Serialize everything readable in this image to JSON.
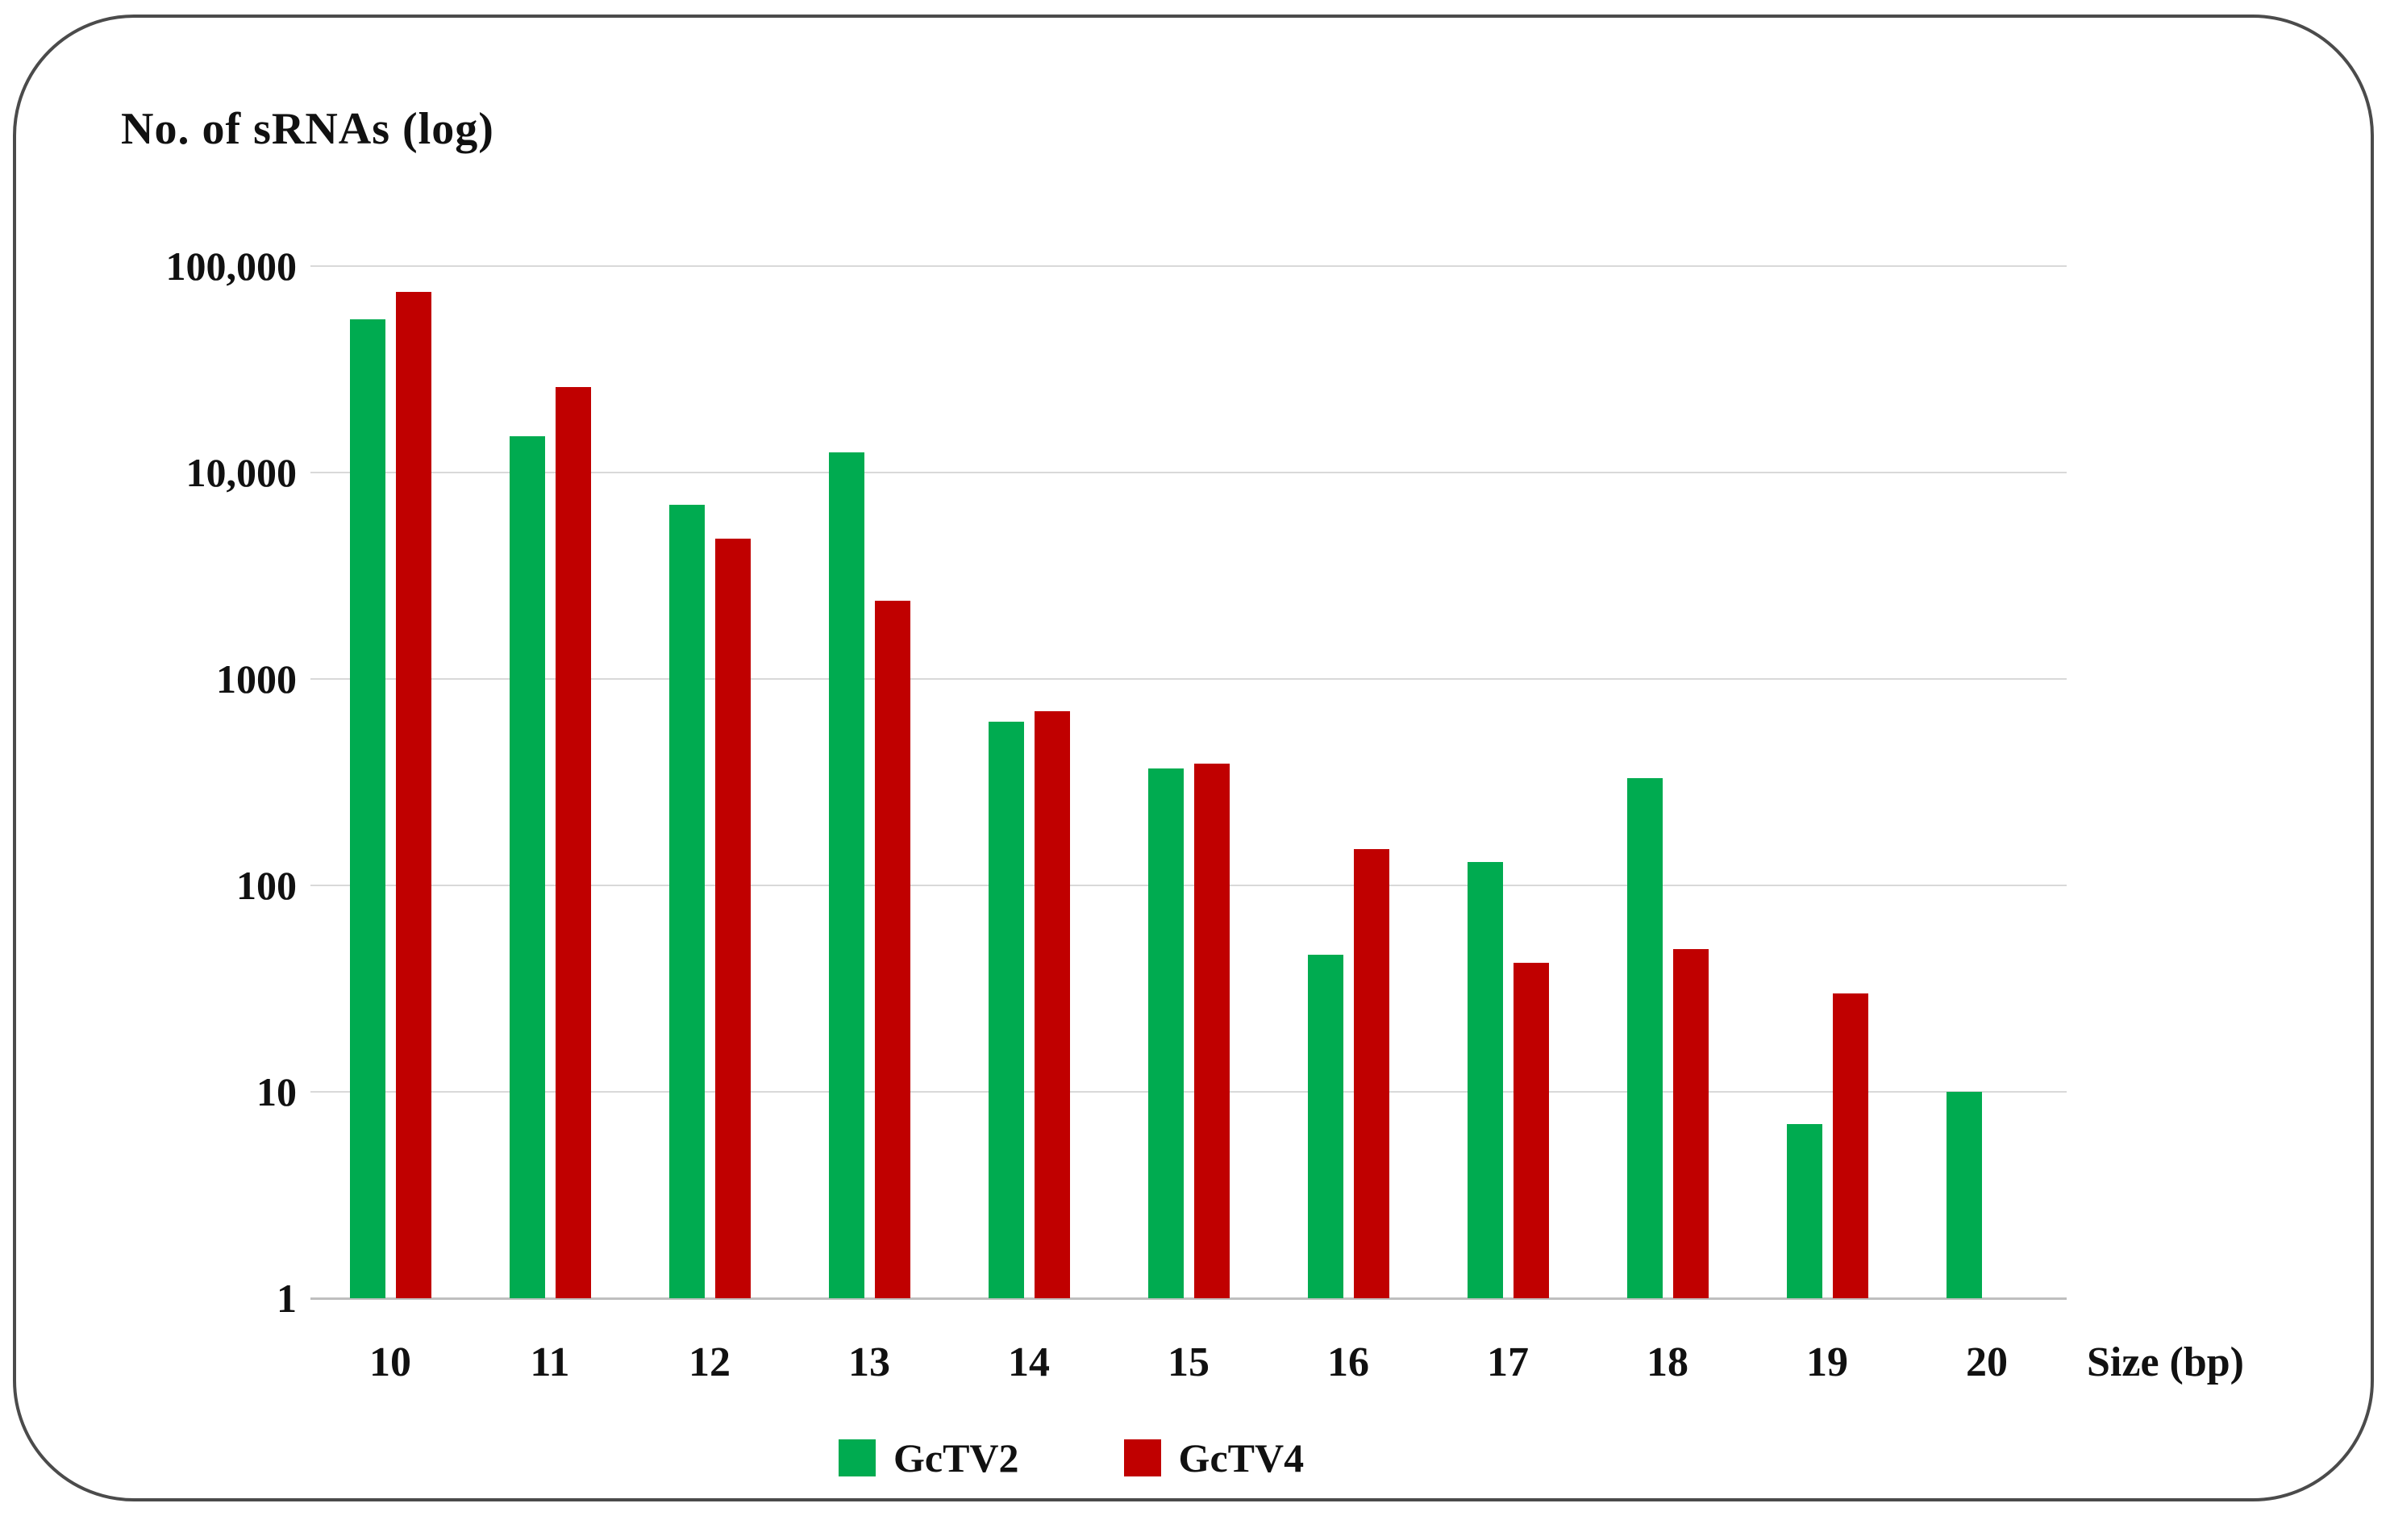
{
  "figure": {
    "background_color": "#ffffff",
    "frame_border_color": "#4b4b4b",
    "gridline_color": "#d9d9d9",
    "axis_line_color": "#bfbfbf"
  },
  "chart_data": {
    "type": "bar",
    "title": "No. of sRNAs (log)",
    "xlabel": "Size (bp)",
    "y_scale": "log",
    "ylim": [
      1,
      100000
    ],
    "y_ticks": [
      "100,000",
      "10,000",
      "1000",
      "100",
      "10",
      "1"
    ],
    "grid": "horizontal",
    "legend_position": "bottom-center",
    "categories": [
      "10",
      "11",
      "12",
      "13",
      "14",
      "15",
      "16",
      "17",
      "18",
      "19",
      "20"
    ],
    "series": [
      {
        "name": "GcTV2",
        "color": "#00AB50",
        "values": [
          55000,
          15000,
          7000,
          12500,
          620,
          370,
          46,
          130,
          330,
          7,
          10
        ]
      },
      {
        "name": "GcTV4",
        "color": "#C00000",
        "values": [
          75000,
          26000,
          4800,
          2400,
          700,
          390,
          150,
          42,
          49,
          30,
          null
        ]
      }
    ]
  }
}
